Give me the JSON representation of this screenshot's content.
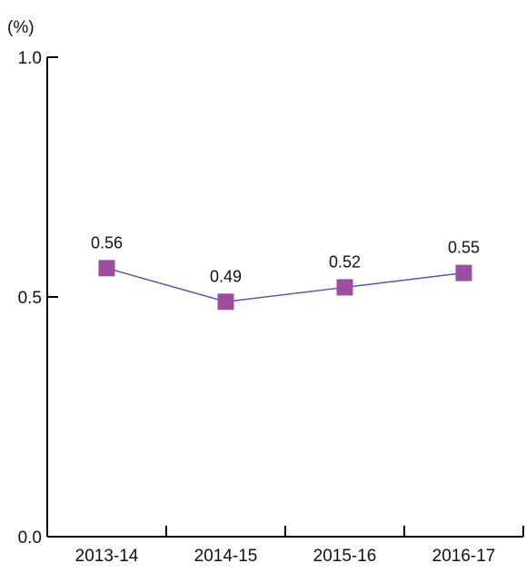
{
  "chart_data": {
    "type": "line",
    "unit_label": "(%)",
    "title": "",
    "xlabel": "",
    "ylabel": "",
    "categories": [
      "2013-14",
      "2014-15",
      "2015-16",
      "2016-17"
    ],
    "series": [
      {
        "values": [
          0.56,
          0.49,
          0.52,
          0.55
        ],
        "line_color": "#4a5aa8",
        "marker_color": "#9b4f9e",
        "marker": "square"
      }
    ],
    "data_labels": [
      "0.56",
      "0.49",
      "0.52",
      "0.55"
    ],
    "y_ticks": [
      0.0,
      0.5,
      1.0
    ],
    "y_tick_labels": [
      "0.0",
      "0.5",
      "1.0"
    ],
    "ylim": [
      0,
      1.0
    ],
    "grid": false,
    "legend": "none"
  }
}
